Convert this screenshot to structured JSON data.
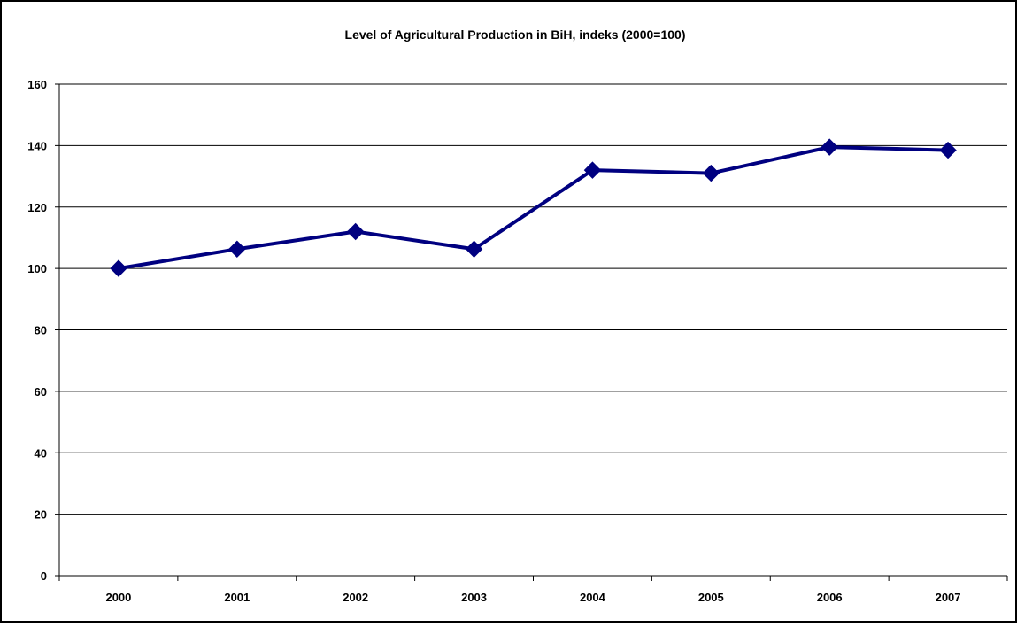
{
  "chart_data": {
    "type": "line",
    "title": "Level of Agricultural Production in BiH, indeks (2000=100)",
    "xlabel": "",
    "ylabel": "",
    "categories": [
      "2000",
      "2001",
      "2002",
      "2003",
      "2004",
      "2005",
      "2006",
      "2007"
    ],
    "series": [
      {
        "values": [
          100,
          106.3,
          112,
          106.3,
          132,
          131,
          139.5,
          138.5
        ],
        "color": "#000080",
        "marker": "diamond"
      }
    ],
    "ylim": [
      0,
      160
    ],
    "yticks": [
      0,
      20,
      40,
      60,
      80,
      100,
      120,
      140,
      160
    ],
    "grid": true,
    "legend": "none"
  }
}
